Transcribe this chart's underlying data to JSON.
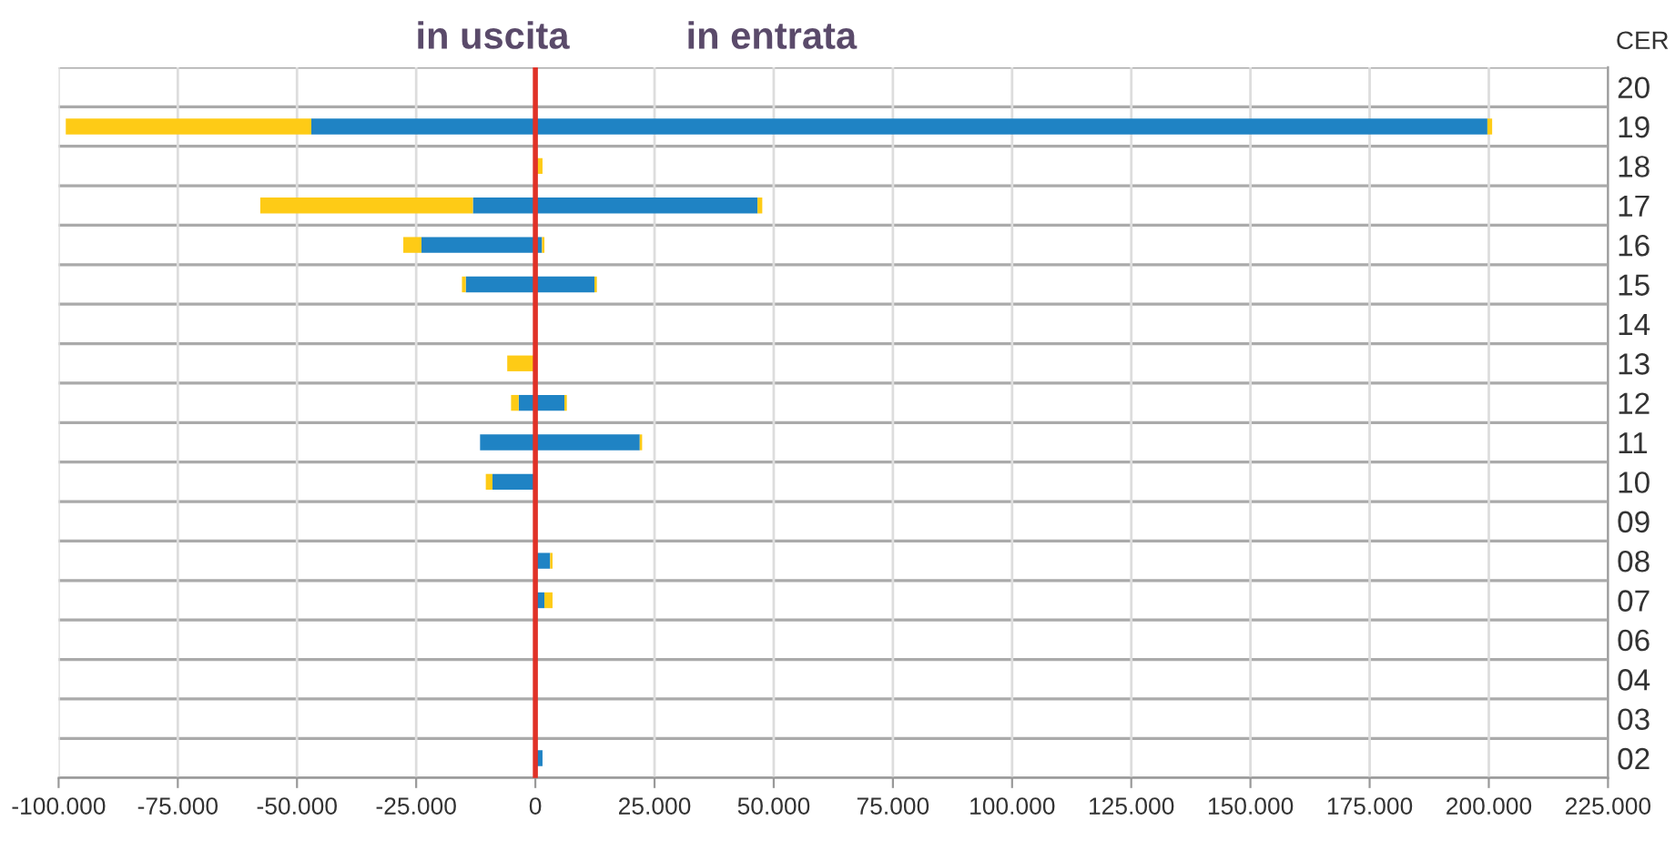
{
  "chart_data": {
    "type": "bar",
    "orientation": "horizontal",
    "stacked": true,
    "ylabel": "CER",
    "annotations": [
      "in uscita",
      "in entrata"
    ],
    "categories": [
      "20",
      "19",
      "18",
      "17",
      "16",
      "15",
      "14",
      "13",
      "12",
      "11",
      "10",
      "09",
      "08",
      "07",
      "06",
      "04",
      "03",
      "02"
    ],
    "series": [
      {
        "color": "#1f83c4",
        "values": [
          null,
          -47000,
          null,
          -13100,
          -23900,
          -14600,
          null,
          null,
          -3500,
          -11600,
          -9000,
          null,
          null,
          null,
          null,
          null,
          null,
          null
        ]
      },
      {
        "color": "#fecb16",
        "values": [
          null,
          -51500,
          null,
          -44600,
          -3800,
          -800,
          null,
          -5900,
          -1600,
          null,
          -1400,
          null,
          null,
          null,
          null,
          null,
          null,
          null
        ]
      },
      {
        "color": "#1f83c4",
        "values": [
          null,
          199700,
          null,
          46600,
          1400,
          12400,
          null,
          null,
          6100,
          21900,
          null,
          null,
          3100,
          1900,
          null,
          null,
          null,
          1500
        ]
      },
      {
        "color": "#fecb16",
        "values": [
          null,
          1000,
          1500,
          1000,
          500,
          500,
          null,
          null,
          500,
          500,
          null,
          null,
          500,
          1700,
          null,
          null,
          null,
          null
        ]
      }
    ],
    "xlim": [
      -100000,
      225000
    ],
    "xticks": [
      {
        "value": -100000,
        "label": "-100.000"
      },
      {
        "value": -75000,
        "label": "-75.000"
      },
      {
        "value": -50000,
        "label": "-50.000"
      },
      {
        "value": -25000,
        "label": "-25.000"
      },
      0,
      {
        "value": 25000,
        "label": "25.000"
      },
      {
        "value": 50000,
        "label": "50.000"
      },
      {
        "value": 75000,
        "label": "75.000"
      },
      {
        "value": 100000,
        "label": "100.000"
      },
      {
        "value": 125000,
        "label": "125.000"
      },
      {
        "value": 150000,
        "label": "150.000"
      },
      {
        "value": 175000,
        "label": "175.000"
      },
      {
        "value": 200000,
        "label": "200.000"
      },
      {
        "value": 225000,
        "label": "225.000"
      }
    ],
    "ref_lines": [
      {
        "axis": "x",
        "value": 0,
        "color": "#e03127"
      }
    ],
    "grid": "x",
    "legend": false
  }
}
